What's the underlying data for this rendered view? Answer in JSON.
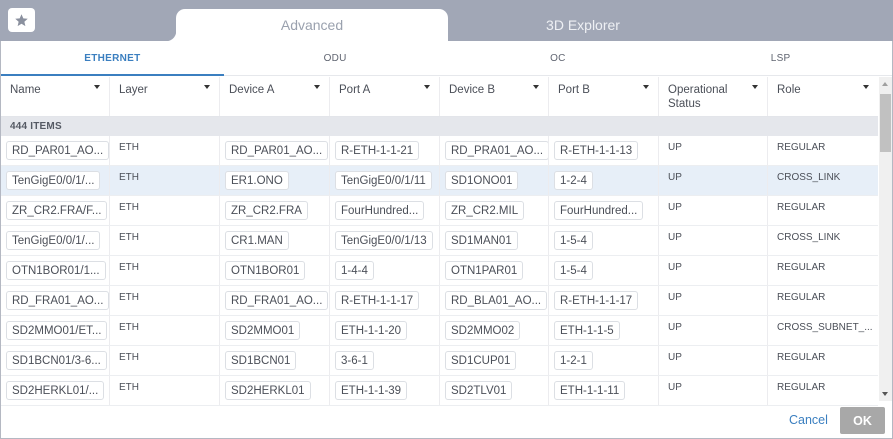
{
  "toolbar": {
    "star_icon": "star-icon"
  },
  "main_tabs": [
    {
      "label": "Advanced",
      "active": true
    },
    {
      "label": "3D Explorer",
      "active": false
    }
  ],
  "sub_tabs": [
    {
      "label": "ETHERNET",
      "active": true
    },
    {
      "label": "ODU",
      "active": false
    },
    {
      "label": "OC",
      "active": false
    },
    {
      "label": "LSP",
      "active": false
    }
  ],
  "table": {
    "columns": [
      "Name",
      "Layer",
      "Device A",
      "Port A",
      "Device B",
      "Port B",
      "Operational Status",
      "Role"
    ],
    "count_label": "444 ITEMS",
    "rows": [
      [
        "RD_PAR01_AO...",
        "ETH",
        "RD_PAR01_AO...",
        "R-ETH-1-1-21",
        "RD_PRA01_AO...",
        "R-ETH-1-1-13",
        "UP",
        "REGULAR"
      ],
      [
        "TenGigE0/0/1/...",
        "ETH",
        "ER1.ONO",
        "TenGigE0/0/1/11",
        "SD1ONO01",
        "1-2-4",
        "UP",
        "CROSS_LINK"
      ],
      [
        "ZR_CR2.FRA/F...",
        "ETH",
        "ZR_CR2.FRA",
        "FourHundred...",
        "ZR_CR2.MIL",
        "FourHundred...",
        "UP",
        "REGULAR"
      ],
      [
        "TenGigE0/0/1/...",
        "ETH",
        "CR1.MAN",
        "TenGigE0/0/1/13",
        "SD1MAN01",
        "1-5-4",
        "UP",
        "CROSS_LINK"
      ],
      [
        "OTN1BOR01/1...",
        "ETH",
        "OTN1BOR01",
        "1-4-4",
        "OTN1PAR01",
        "1-5-4",
        "UP",
        "REGULAR"
      ],
      [
        "RD_FRA01_AO...",
        "ETH",
        "RD_FRA01_AO...",
        "R-ETH-1-1-17",
        "RD_BLA01_AO...",
        "R-ETH-1-1-17",
        "UP",
        "REGULAR"
      ],
      [
        "SD2MMO01/ET...",
        "ETH",
        "SD2MMO01",
        "ETH-1-1-20",
        "SD2MMO02",
        "ETH-1-1-5",
        "UP",
        "CROSS_SUBNET_..."
      ],
      [
        "SD1BCN01/3-6...",
        "ETH",
        "SD1BCN01",
        "3-6-1",
        "SD1CUP01",
        "1-2-1",
        "UP",
        "REGULAR"
      ],
      [
        "SD2HERKL01/...",
        "ETH",
        "SD2HERKL01",
        "ETH-1-1-39",
        "SD2TLV01",
        "ETH-1-1-11",
        "UP",
        "REGULAR"
      ]
    ],
    "selected_row": 1
  },
  "footer": {
    "cancel_label": "Cancel",
    "ok_label": "OK"
  },
  "colors": {
    "accent": "#3b7fc0",
    "topbar": "#a1a7b6",
    "selected_row": "#e7eff8",
    "ok_disabled": "#a8a8a8"
  }
}
